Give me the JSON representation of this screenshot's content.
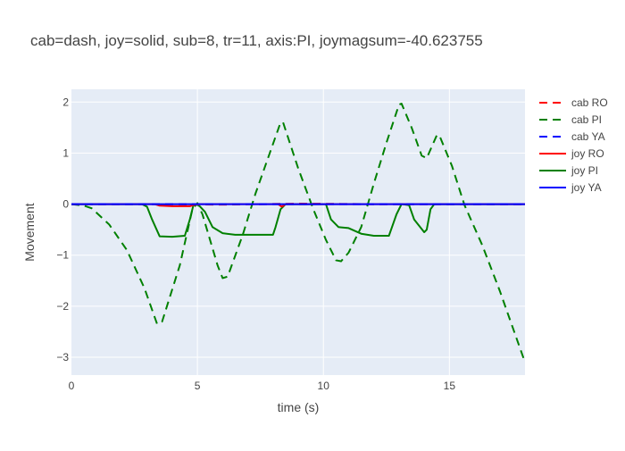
{
  "chart_data": {
    "type": "line",
    "title": "cab=dash, joy=solid, sub=8, tr=11, axis:PI, joymagsum=-40.623755",
    "xlabel": "time (s)",
    "ylabel": "Movement",
    "xlim": [
      0,
      18
    ],
    "ylim": [
      -3.35,
      2.25
    ],
    "x_ticks": [
      0,
      5,
      10,
      15
    ],
    "y_ticks": [
      2,
      1,
      0,
      -1,
      -2,
      -3
    ],
    "x_tick_labels": [
      "0",
      "5",
      "10",
      "15"
    ],
    "y_tick_labels": [
      "2",
      "1",
      "0",
      "−1",
      "−2",
      "−3"
    ],
    "grid": true,
    "legend_position": "right",
    "plot_background": "#e5ecf6",
    "series": [
      {
        "name": "cab RO",
        "color": "#ff0000",
        "dash": "dash",
        "points": [
          [
            0,
            0
          ],
          [
            3,
            0
          ],
          [
            6,
            -0.01
          ],
          [
            9,
            0.01
          ],
          [
            12,
            0
          ],
          [
            15,
            0
          ],
          [
            18,
            0
          ]
        ]
      },
      {
        "name": "cab PI",
        "color": "#008000",
        "dash": "dash",
        "points": [
          [
            0,
            0
          ],
          [
            0.5,
            -0.03
          ],
          [
            0.8,
            -0.08
          ],
          [
            1.5,
            -0.4
          ],
          [
            2.2,
            -0.9
          ],
          [
            2.9,
            -1.65
          ],
          [
            3.4,
            -2.35
          ],
          [
            3.6,
            -2.3
          ],
          [
            4.3,
            -1.2
          ],
          [
            4.8,
            -0.1
          ],
          [
            5.0,
            0.02
          ],
          [
            5.2,
            -0.2
          ],
          [
            5.8,
            -1.2
          ],
          [
            6.0,
            -1.45
          ],
          [
            6.2,
            -1.42
          ],
          [
            6.8,
            -0.6
          ],
          [
            7.3,
            0.2
          ],
          [
            7.8,
            0.9
          ],
          [
            8.3,
            1.6
          ],
          [
            8.4,
            1.6
          ],
          [
            9.0,
            0.7
          ],
          [
            9.6,
            -0.1
          ],
          [
            10.1,
            -0.7
          ],
          [
            10.5,
            -1.1
          ],
          [
            10.7,
            -1.12
          ],
          [
            11.0,
            -0.95
          ],
          [
            11.5,
            -0.45
          ],
          [
            12.0,
            0.4
          ],
          [
            12.5,
            1.2
          ],
          [
            13.0,
            1.95
          ],
          [
            13.1,
            1.97
          ],
          [
            13.5,
            1.5
          ],
          [
            13.9,
            0.95
          ],
          [
            14.1,
            0.9
          ],
          [
            14.5,
            1.35
          ],
          [
            14.6,
            1.35
          ],
          [
            15.1,
            0.75
          ],
          [
            15.6,
            -0.02
          ],
          [
            16.3,
            -0.8
          ],
          [
            17.0,
            -1.7
          ],
          [
            17.5,
            -2.4
          ],
          [
            18.0,
            -3.1
          ]
        ]
      },
      {
        "name": "cab YA",
        "color": "#0000ff",
        "dash": "dash",
        "points": [
          [
            0,
            0
          ],
          [
            6,
            0
          ],
          [
            12,
            0
          ],
          [
            18,
            0
          ]
        ]
      },
      {
        "name": "joy RO",
        "color": "#ff0000",
        "dash": "solid",
        "points": [
          [
            0,
            0
          ],
          [
            3.3,
            0
          ],
          [
            3.5,
            -0.03
          ],
          [
            4.0,
            -0.04
          ],
          [
            4.7,
            -0.04
          ],
          [
            4.9,
            -0.01
          ],
          [
            5.1,
            0
          ],
          [
            8.2,
            0
          ],
          [
            8.35,
            -0.05
          ],
          [
            8.5,
            0
          ],
          [
            18.0,
            0
          ]
        ]
      },
      {
        "name": "joy PI",
        "color": "#008000",
        "dash": "solid",
        "points": [
          [
            0,
            0
          ],
          [
            2.8,
            0
          ],
          [
            3.0,
            -0.05
          ],
          [
            3.2,
            -0.3
          ],
          [
            3.5,
            -0.63
          ],
          [
            4.0,
            -0.64
          ],
          [
            4.5,
            -0.62
          ],
          [
            4.7,
            -0.3
          ],
          [
            4.85,
            0
          ],
          [
            5.05,
            -0.02
          ],
          [
            5.3,
            -0.15
          ],
          [
            5.6,
            -0.45
          ],
          [
            6.0,
            -0.57
          ],
          [
            6.5,
            -0.6
          ],
          [
            8.0,
            -0.6
          ],
          [
            8.1,
            -0.45
          ],
          [
            8.3,
            -0.1
          ],
          [
            8.5,
            0
          ],
          [
            10.1,
            0
          ],
          [
            10.3,
            -0.3
          ],
          [
            10.6,
            -0.45
          ],
          [
            11.0,
            -0.47
          ],
          [
            11.5,
            -0.58
          ],
          [
            12.0,
            -0.62
          ],
          [
            12.6,
            -0.62
          ],
          [
            12.9,
            -0.2
          ],
          [
            13.1,
            0
          ],
          [
            13.4,
            -0.02
          ],
          [
            13.6,
            -0.3
          ],
          [
            14.0,
            -0.55
          ],
          [
            14.1,
            -0.5
          ],
          [
            14.25,
            -0.1
          ],
          [
            14.4,
            0
          ],
          [
            18.0,
            0
          ]
        ]
      },
      {
        "name": "joy YA",
        "color": "#0000ff",
        "dash": "solid",
        "points": [
          [
            0,
            0
          ],
          [
            6,
            0
          ],
          [
            12,
            0
          ],
          [
            18,
            0
          ]
        ]
      }
    ]
  }
}
